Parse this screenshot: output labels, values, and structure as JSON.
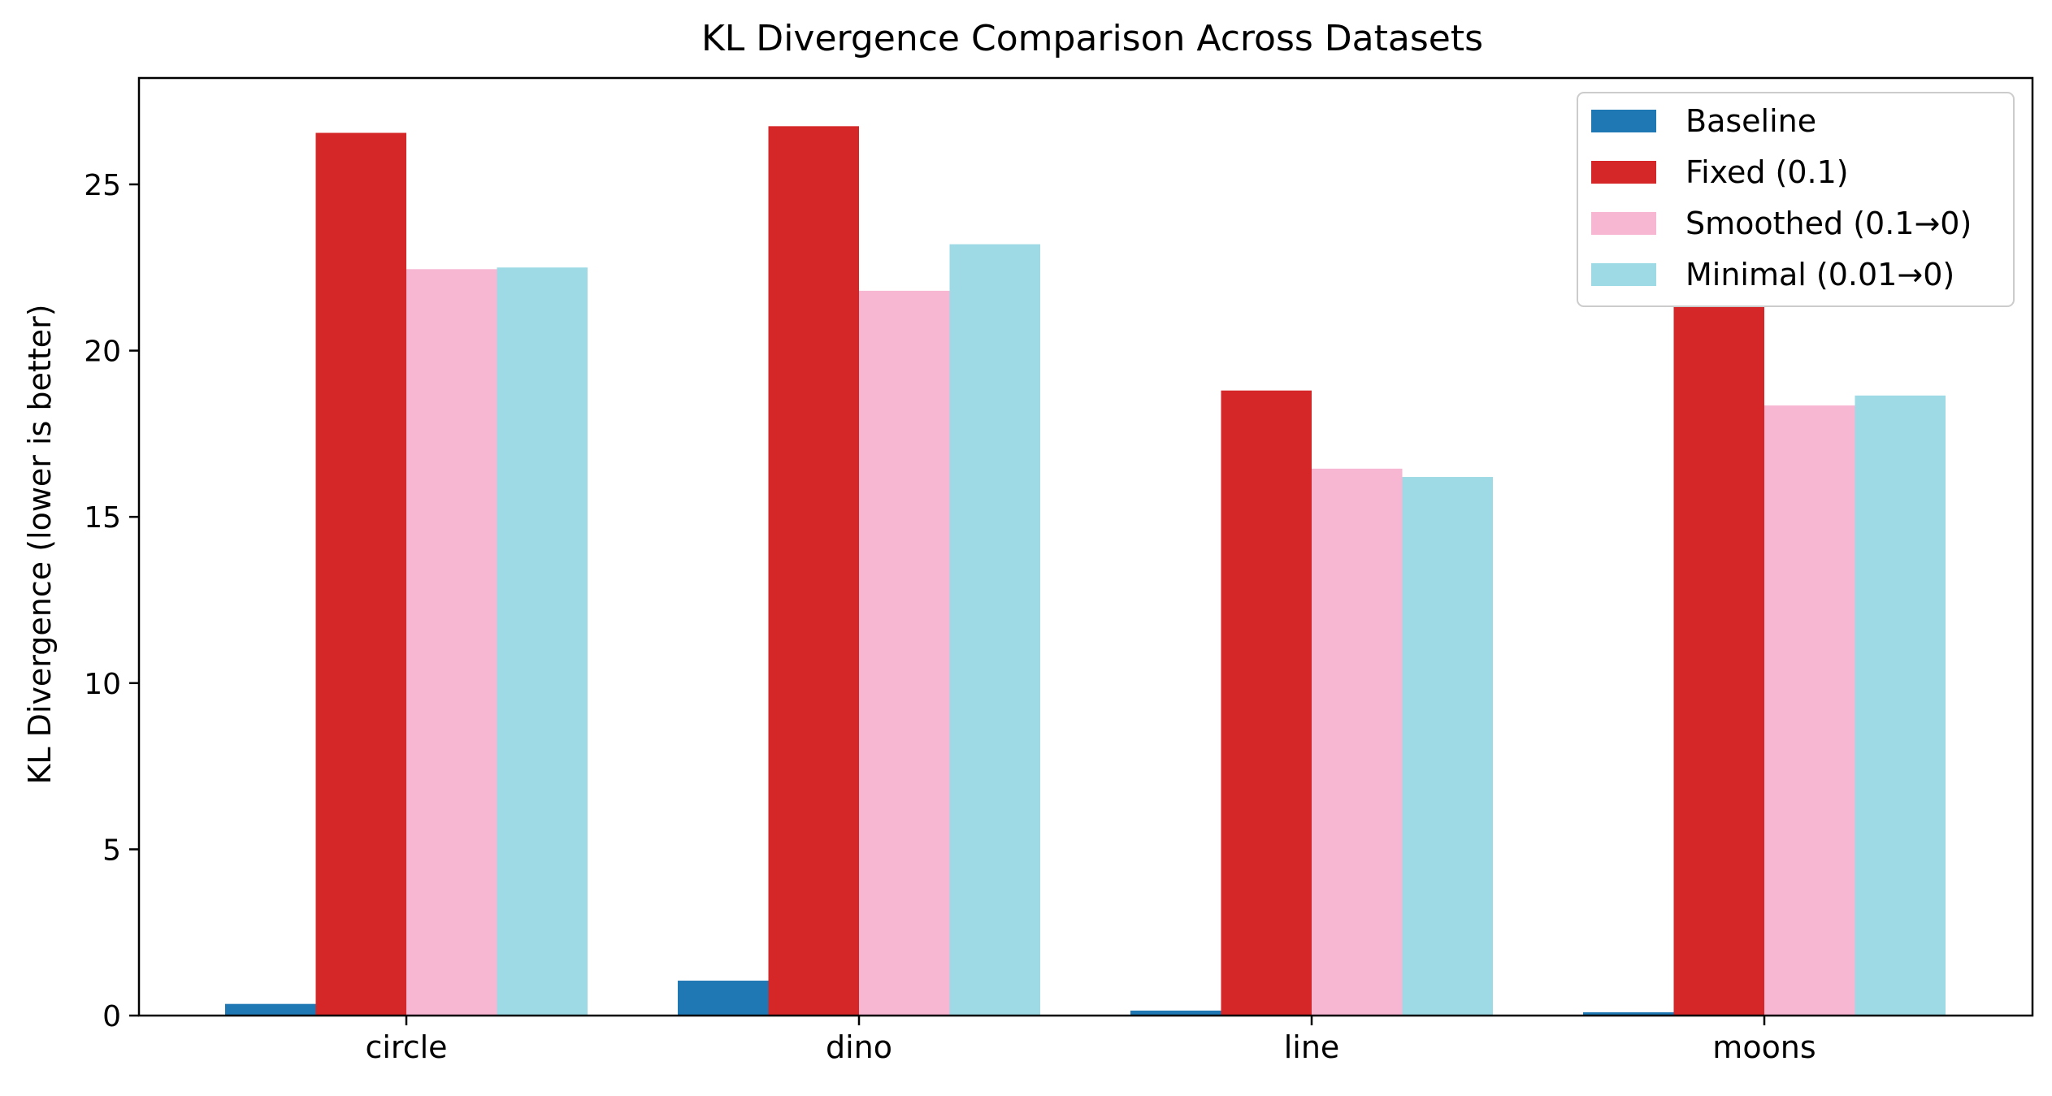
{
  "chart_data": {
    "type": "bar",
    "title": "KL Divergence Comparison Across Datasets",
    "xlabel": "",
    "ylabel": "KL Divergence (lower is better)",
    "categories": [
      "circle",
      "dino",
      "line",
      "moons"
    ],
    "ylim": [
      0,
      28.2
    ],
    "yticks": [
      0,
      5,
      10,
      15,
      20,
      25
    ],
    "grid": false,
    "legend_position": "top-right",
    "series": [
      {
        "name": "Baseline",
        "color": "#1f77b4",
        "values": [
          0.35,
          1.05,
          0.15,
          0.1
        ]
      },
      {
        "name": "Fixed (0.1)",
        "color": "#d62728",
        "values": [
          26.55,
          26.75,
          18.8,
          21.35
        ]
      },
      {
        "name": "Smoothed (0.1→0)",
        "color": "#f7b6d2",
        "values": [
          22.45,
          21.8,
          16.45,
          18.35
        ]
      },
      {
        "name": "Minimal (0.01→0)",
        "color": "#9edae5",
        "values": [
          22.5,
          23.2,
          16.2,
          18.65
        ]
      }
    ]
  }
}
